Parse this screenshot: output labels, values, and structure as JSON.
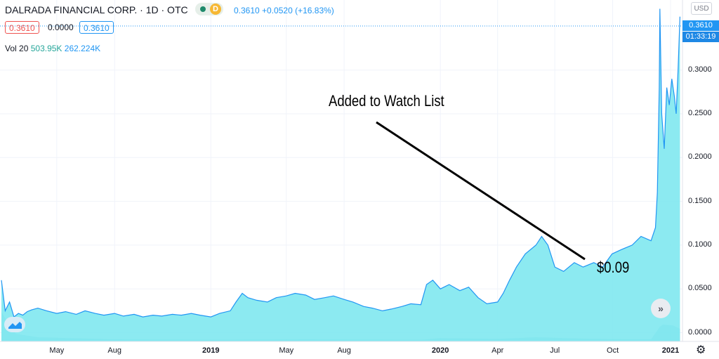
{
  "header": {
    "title": "DALRADA FINANCIAL CORP. · 1D · OTC",
    "badge_letter": "D",
    "price_info": "0.3610 +0.0520 (+16.83%)",
    "bid": "0.3610",
    "spread": "0.0000",
    "ask": "0.3610",
    "vol_label": "Vol 20",
    "vol_value": "503.95K",
    "vol_ma": "262.224K"
  },
  "axis": {
    "currency": "USD",
    "price_tag": "0.3610",
    "countdown": "01:33:19"
  },
  "annotations": {
    "title": "Added to Watch List",
    "price": "$0.09"
  },
  "icons": {
    "scroll": "chevrons-right-icon",
    "settings": "gear-icon",
    "logo": "tradingview-logo-icon"
  },
  "colors": {
    "line": "#2196f3",
    "area": "#7fe8ef",
    "volume": "#4fc6d9",
    "arrow": "#000000"
  },
  "chart_data": {
    "type": "area",
    "ylim": [
      -0.01,
      0.38
    ],
    "yticks": [
      "0.3000",
      "0.2500",
      "0.2000",
      "0.1500",
      "0.1000",
      "0.0500",
      "0.0000"
    ],
    "xticks": [
      "May",
      "Aug",
      "2019",
      "May",
      "Aug",
      "2020",
      "Apr",
      "Jul",
      "Oct",
      "2021"
    ],
    "points": [
      [
        "2018-02-02",
        0.06
      ],
      [
        "2018-02-08",
        0.025
      ],
      [
        "2018-02-15",
        0.035
      ],
      [
        "2018-02-22",
        0.018
      ],
      [
        "2018-03-01",
        0.022
      ],
      [
        "2018-03-08",
        0.02
      ],
      [
        "2018-03-15",
        0.024
      ],
      [
        "2018-03-22",
        0.026
      ],
      [
        "2018-04-01",
        0.028
      ],
      [
        "2018-04-15",
        0.025
      ],
      [
        "2018-05-01",
        0.022
      ],
      [
        "2018-05-15",
        0.024
      ],
      [
        "2018-06-01",
        0.021
      ],
      [
        "2018-06-15",
        0.025
      ],
      [
        "2018-07-01",
        0.022
      ],
      [
        "2018-07-15",
        0.02
      ],
      [
        "2018-08-01",
        0.022
      ],
      [
        "2018-08-15",
        0.019
      ],
      [
        "2018-09-01",
        0.021
      ],
      [
        "2018-09-15",
        0.018
      ],
      [
        "2018-10-01",
        0.02
      ],
      [
        "2018-10-15",
        0.019
      ],
      [
        "2018-11-01",
        0.021
      ],
      [
        "2018-11-15",
        0.02
      ],
      [
        "2018-12-01",
        0.022
      ],
      [
        "2018-12-15",
        0.02
      ],
      [
        "2019-01-01",
        0.018
      ],
      [
        "2019-01-15",
        0.022
      ],
      [
        "2019-02-01",
        0.025
      ],
      [
        "2019-02-10",
        0.035
      ],
      [
        "2019-02-20",
        0.045
      ],
      [
        "2019-03-01",
        0.04
      ],
      [
        "2019-03-15",
        0.037
      ],
      [
        "2019-04-01",
        0.035
      ],
      [
        "2019-04-15",
        0.04
      ],
      [
        "2019-05-01",
        0.042
      ],
      [
        "2019-05-15",
        0.045
      ],
      [
        "2019-06-01",
        0.043
      ],
      [
        "2019-06-15",
        0.038
      ],
      [
        "2019-07-01",
        0.04
      ],
      [
        "2019-07-15",
        0.042
      ],
      [
        "2019-08-01",
        0.038
      ],
      [
        "2019-08-15",
        0.035
      ],
      [
        "2019-09-01",
        0.03
      ],
      [
        "2019-09-15",
        0.028
      ],
      [
        "2019-10-01",
        0.025
      ],
      [
        "2019-10-15",
        0.027
      ],
      [
        "2019-11-01",
        0.03
      ],
      [
        "2019-11-15",
        0.033
      ],
      [
        "2019-12-01",
        0.032
      ],
      [
        "2019-12-10",
        0.055
      ],
      [
        "2019-12-20",
        0.06
      ],
      [
        "2020-01-01",
        0.05
      ],
      [
        "2020-01-15",
        0.055
      ],
      [
        "2020-02-01",
        0.048
      ],
      [
        "2020-02-15",
        0.052
      ],
      [
        "2020-03-01",
        0.04
      ],
      [
        "2020-03-15",
        0.033
      ],
      [
        "2020-04-01",
        0.035
      ],
      [
        "2020-04-10",
        0.045
      ],
      [
        "2020-04-20",
        0.06
      ],
      [
        "2020-05-01",
        0.075
      ],
      [
        "2020-05-15",
        0.09
      ],
      [
        "2020-06-01",
        0.1
      ],
      [
        "2020-06-10",
        0.11
      ],
      [
        "2020-06-20",
        0.1
      ],
      [
        "2020-07-01",
        0.075
      ],
      [
        "2020-07-15",
        0.07
      ],
      [
        "2020-08-01",
        0.08
      ],
      [
        "2020-08-15",
        0.075
      ],
      [
        "2020-09-01",
        0.08
      ],
      [
        "2020-09-15",
        0.075
      ],
      [
        "2020-09-22",
        0.082
      ],
      [
        "2020-09-30",
        0.09
      ],
      [
        "2020-10-15",
        0.095
      ],
      [
        "2020-11-01",
        0.1
      ],
      [
        "2020-11-15",
        0.11
      ],
      [
        "2020-12-01",
        0.105
      ],
      [
        "2020-12-08",
        0.12
      ],
      [
        "2020-12-11",
        0.16
      ],
      [
        "2020-12-14",
        0.28
      ],
      [
        "2020-12-15",
        0.37
      ],
      [
        "2020-12-18",
        0.25
      ],
      [
        "2020-12-22",
        0.21
      ],
      [
        "2020-12-26",
        0.28
      ],
      [
        "2020-12-30",
        0.26
      ],
      [
        "2021-01-03",
        0.29
      ],
      [
        "2021-01-07",
        0.27
      ],
      [
        "2021-01-10",
        0.25
      ],
      [
        "2021-01-13",
        0.3
      ],
      [
        "2021-01-16",
        0.361
      ]
    ],
    "volume": [
      [
        "2018-02-02",
        0.7
      ],
      [
        "2018-02-10",
        0.5
      ],
      [
        "2018-02-25",
        0.18
      ],
      [
        "2018-04-01",
        0.1
      ],
      [
        "2018-08-01",
        0.05
      ],
      [
        "2019-01-01",
        0.04
      ],
      [
        "2019-06-01",
        0.05
      ],
      [
        "2019-12-01",
        0.04
      ],
      [
        "2020-01-01",
        0.08
      ],
      [
        "2020-04-01",
        0.06
      ],
      [
        "2020-06-01",
        0.1
      ],
      [
        "2020-09-01",
        0.06
      ],
      [
        "2020-12-01",
        0.05
      ],
      [
        "2020-12-15",
        0.35
      ],
      [
        "2020-12-20",
        0.4
      ],
      [
        "2021-01-05",
        0.38
      ],
      [
        "2021-01-16",
        0.3
      ]
    ]
  }
}
